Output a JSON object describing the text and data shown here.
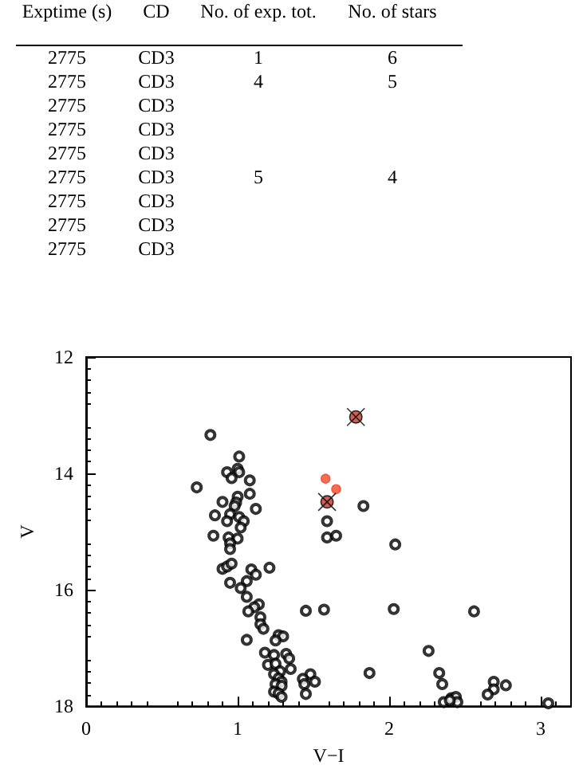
{
  "chart_data": [
    {
      "type": "other",
      "categories": [
        "Exptime (s)",
        "CD",
        "No. of exp. tot.",
        "No. of stars"
      ],
      "cell_labels": [
        [
          "2775",
          "CD3",
          "1",
          "6"
        ],
        [
          "2775",
          "CD3",
          "4",
          "5"
        ],
        [
          "2775",
          "CD3",
          null,
          null
        ],
        [
          "2775",
          "CD3",
          null,
          null
        ],
        [
          "2775",
          "CD3",
          null,
          null
        ],
        [
          "2775",
          "CD3",
          "5",
          "4"
        ],
        [
          "2775",
          "CD3",
          null,
          null
        ],
        [
          "2775",
          "CD3",
          null,
          null
        ],
        [
          "2775",
          "CD3",
          null,
          null
        ]
      ]
    },
    {
      "type": "scatter",
      "xlabel": "V−I",
      "ylabel": "V",
      "xlim": [
        0,
        3.2
      ],
      "ylim": [
        18,
        12
      ],
      "xticks": [
        0,
        1,
        2,
        3
      ],
      "yticks": [
        12,
        14,
        16,
        18
      ],
      "grid": false,
      "series": [
        {
          "color": "#000000",
          "marker": "circle",
          "x": [
            0.82,
            1.01,
            0.93,
            1.0,
            1.01,
            0.96,
            1.08,
            0.73,
            1.08,
            0.9,
            1.0,
            0.99,
            0.98,
            1.12,
            0.85,
            0.95,
            1.01,
            0.93,
            1.04,
            1.02,
            0.84,
            0.94,
            1.0,
            0.95,
            0.95,
            0.9,
            0.93,
            0.96,
            0.95,
            1.21,
            1.09,
            1.12,
            1.06,
            1.02,
            1.06,
            1.14,
            1.11,
            1.07,
            1.15,
            1.15,
            1.17,
            1.06,
            1.27,
            1.3,
            1.25,
            1.18,
            1.24,
            1.32,
            1.34,
            1.2,
            1.25,
            1.28,
            1.35,
            1.24,
            1.27,
            1.29,
            1.25,
            1.29,
            1.24,
            1.27,
            1.29,
            1.45,
            1.57,
            1.48,
            1.43,
            1.44,
            1.45,
            1.51,
            1.83,
            1.59,
            1.59,
            1.65,
            2.04,
            2.03,
            2.56,
            1.87,
            2.26,
            2.33,
            2.35,
            2.69,
            2.69,
            2.77,
            2.65,
            2.36,
            2.41,
            2.44,
            2.45,
            2.4,
            3.05
          ],
          "values": [
            13.34,
            13.71,
            13.98,
            13.92,
            13.98,
            14.08,
            14.12,
            14.24,
            14.35,
            14.49,
            14.4,
            14.5,
            14.56,
            14.61,
            14.72,
            14.7,
            14.75,
            14.82,
            14.82,
            14.93,
            15.07,
            15.1,
            15.12,
            15.2,
            15.3,
            15.64,
            15.6,
            15.55,
            15.88,
            15.62,
            15.65,
            15.74,
            15.85,
            15.97,
            16.12,
            16.25,
            16.3,
            16.37,
            16.47,
            16.59,
            16.67,
            16.86,
            16.78,
            16.8,
            16.87,
            17.08,
            17.12,
            17.1,
            17.18,
            17.29,
            17.27,
            17.4,
            17.36,
            17.45,
            17.52,
            17.58,
            17.62,
            17.65,
            17.75,
            17.78,
            17.84,
            16.36,
            16.34,
            17.45,
            17.53,
            17.62,
            17.79,
            17.58,
            14.56,
            14.82,
            15.1,
            15.07,
            15.22,
            16.33,
            16.37,
            17.43,
            17.05,
            17.43,
            17.62,
            17.58,
            17.71,
            17.64,
            17.8,
            17.93,
            17.86,
            17.84,
            17.93,
            17.9,
            17.95
          ]
        },
        {
          "color": "#f04a2a",
          "marker": "circle",
          "x": [
            1.58,
            1.65
          ],
          "values": [
            14.09,
            14.27
          ]
        },
        {
          "color": "#c0392b",
          "marker": "cross",
          "x": [
            1.78,
            1.59
          ],
          "values": [
            13.03,
            14.49
          ]
        }
      ]
    }
  ]
}
